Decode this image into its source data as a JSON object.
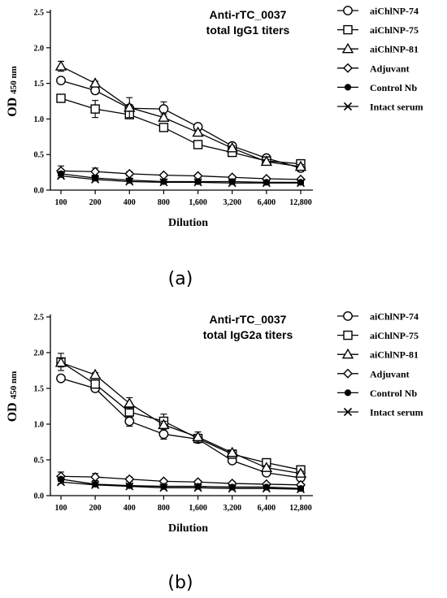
{
  "chart_data": [
    {
      "type": "line",
      "caption": "(a)",
      "title_lines": [
        "Anti-rTC_0037",
        "total IgG1 titers"
      ],
      "ylabel": "OD",
      "ylabel_sub": "450 nm",
      "xlabel": "Dilution",
      "categories": [
        "100",
        "200",
        "400",
        "800",
        "1,600",
        "3,200",
        "6,400",
        "12,800"
      ],
      "yticks": [
        "0.0",
        "0.5",
        "1.0",
        "1.5",
        "2.0",
        "2.5"
      ],
      "ylim": [
        0,
        2.5
      ],
      "series": [
        {
          "name": "aiChlNP-74",
          "marker": "circle",
          "values": [
            1.54,
            1.4,
            1.15,
            1.14,
            0.89,
            0.62,
            0.45,
            0.31
          ],
          "errors": [
            0.03,
            0.05,
            0.05,
            0.1,
            0.03,
            0.03,
            0.03,
            0.05
          ]
        },
        {
          "name": "aiChlNP-75",
          "marker": "square",
          "values": [
            1.29,
            1.14,
            1.06,
            0.88,
            0.64,
            0.53,
            0.41,
            0.37
          ],
          "errors": [
            0.05,
            0.12,
            0.05,
            0.05,
            0.03,
            0.03,
            0.03,
            0.03
          ]
        },
        {
          "name": "aiChlNP-81",
          "marker": "triangle",
          "values": [
            1.74,
            1.5,
            1.16,
            1.02,
            0.81,
            0.59,
            0.4,
            0.33
          ],
          "errors": [
            0.07,
            0.03,
            0.14,
            0.05,
            0.03,
            0.03,
            0.03,
            0.03
          ]
        },
        {
          "name": "Adjuvant",
          "marker": "diamond",
          "values": [
            0.27,
            0.26,
            0.23,
            0.21,
            0.2,
            0.18,
            0.16,
            0.15
          ],
          "errors": [
            0.07,
            0.05,
            0.03,
            0.02,
            0.02,
            0.02,
            0.02,
            0.02
          ]
        },
        {
          "name": "Control Nb",
          "marker": "dot",
          "values": [
            0.23,
            0.17,
            0.14,
            0.12,
            0.12,
            0.12,
            0.11,
            0.11
          ],
          "errors": [
            0.03,
            0.03,
            0.02,
            0.02,
            0.02,
            0.02,
            0.02,
            0.02
          ]
        },
        {
          "name": "Intact serum",
          "marker": "cross",
          "values": [
            0.2,
            0.15,
            0.12,
            0.11,
            0.11,
            0.1,
            0.1,
            0.1
          ],
          "errors": [
            0.02,
            0.02,
            0.02,
            0.02,
            0.02,
            0.02,
            0.02,
            0.02
          ]
        }
      ]
    },
    {
      "type": "line",
      "caption": "(b)",
      "title_lines": [
        "Anti-rTC_0037",
        "total IgG2a titers"
      ],
      "ylabel": "OD",
      "ylabel_sub": "450 nm",
      "xlabel": "Dilution",
      "categories": [
        "100",
        "200",
        "400",
        "800",
        "1,600",
        "3,200",
        "6,400",
        "12,800"
      ],
      "yticks": [
        "0.0",
        "0.5",
        "1.0",
        "1.5",
        "2.0",
        "2.5"
      ],
      "ylim": [
        0,
        2.5
      ],
      "series": [
        {
          "name": "aiChlNP-74",
          "marker": "circle",
          "values": [
            1.64,
            1.5,
            1.04,
            0.86,
            0.79,
            0.49,
            0.32,
            0.25
          ],
          "errors": [
            0.04,
            0.03,
            0.07,
            0.07,
            0.05,
            0.03,
            0.03,
            0.03
          ]
        },
        {
          "name": "aiChlNP-75",
          "marker": "square",
          "values": [
            1.87,
            1.56,
            1.17,
            1.04,
            0.8,
            0.58,
            0.46,
            0.36
          ],
          "errors": [
            0.12,
            0.04,
            0.07,
            0.1,
            0.05,
            0.03,
            0.03,
            0.03
          ]
        },
        {
          "name": "aiChlNP-81",
          "marker": "triangle",
          "values": [
            1.86,
            1.69,
            1.29,
            0.99,
            0.82,
            0.6,
            0.39,
            0.31
          ],
          "errors": [
            0.06,
            0.03,
            0.08,
            0.05,
            0.07,
            0.03,
            0.03,
            0.03
          ]
        },
        {
          "name": "Adjuvant",
          "marker": "diamond",
          "values": [
            0.27,
            0.26,
            0.23,
            0.2,
            0.19,
            0.17,
            0.16,
            0.15
          ],
          "errors": [
            0.06,
            0.05,
            0.03,
            0.02,
            0.02,
            0.02,
            0.02,
            0.02
          ]
        },
        {
          "name": "Control Nb",
          "marker": "dot",
          "values": [
            0.23,
            0.16,
            0.14,
            0.13,
            0.13,
            0.12,
            0.12,
            0.1
          ],
          "errors": [
            0.03,
            0.03,
            0.02,
            0.02,
            0.02,
            0.02,
            0.02,
            0.02
          ]
        },
        {
          "name": "Intact serum",
          "marker": "cross",
          "values": [
            0.19,
            0.15,
            0.13,
            0.11,
            0.11,
            0.1,
            0.1,
            0.09
          ],
          "errors": [
            0.02,
            0.02,
            0.02,
            0.02,
            0.02,
            0.02,
            0.02,
            0.02
          ]
        }
      ]
    }
  ]
}
